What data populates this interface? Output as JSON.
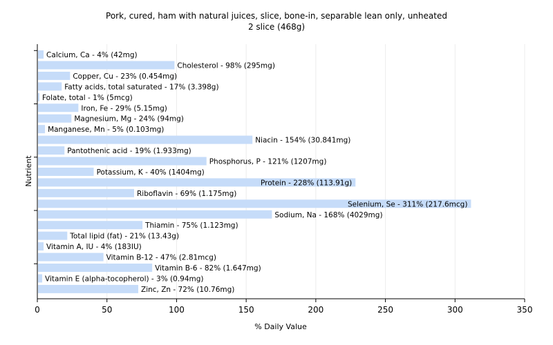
{
  "chart_data": {
    "type": "bar",
    "orientation": "horizontal",
    "title": "Pork, cured, ham with natural juices, slice, bone-in, separable lean only, unheated",
    "subtitle": "2 slice (468g)",
    "xlabel": "% Daily Value",
    "ylabel": "Nutrient",
    "xlim": [
      0,
      350
    ],
    "xticks": [
      0,
      50,
      100,
      150,
      200,
      250,
      300,
      350
    ],
    "grid": true,
    "bar_color": "#c6dcf9",
    "categories": [
      "Calcium, Ca",
      "Cholesterol",
      "Copper, Cu",
      "Fatty acids, total saturated",
      "Folate, total",
      "Iron, Fe",
      "Magnesium, Mg",
      "Manganese, Mn",
      "Niacin",
      "Pantothenic acid",
      "Phosphorus, P",
      "Potassium, K",
      "Protein",
      "Riboflavin",
      "Selenium, Se",
      "Sodium, Na",
      "Thiamin",
      "Total lipid (fat)",
      "Vitamin A, IU",
      "Vitamin B-12",
      "Vitamin B-6",
      "Vitamin E (alpha-tocopherol)",
      "Zinc, Zn"
    ],
    "values": [
      4,
      98,
      23,
      17,
      1,
      29,
      24,
      5,
      154,
      19,
      121,
      40,
      228,
      69,
      311,
      168,
      75,
      21,
      4,
      47,
      82,
      3,
      72
    ],
    "labels": [
      "Calcium, Ca - 4% (42mg)",
      "Cholesterol - 98% (295mg)",
      "Copper, Cu - 23% (0.454mg)",
      "Fatty acids, total saturated - 17% (3.398g)",
      "Folate, total - 1% (5mcg)",
      "Iron, Fe - 29% (5.15mg)",
      "Magnesium, Mg - 24% (94mg)",
      "Manganese, Mn - 5% (0.103mg)",
      "Niacin - 154% (30.841mg)",
      "Pantothenic acid - 19% (1.933mg)",
      "Phosphorus, P - 121% (1207mg)",
      "Potassium, K - 40% (1404mg)",
      "Protein - 228% (113.91g)",
      "Riboflavin - 69% (1.175mg)",
      "Selenium, Se - 311% (217.6mcg)",
      "Sodium, Na - 168% (4029mg)",
      "Thiamin - 75% (1.123mg)",
      "Total lipid (fat) - 21% (13.43g)",
      "Vitamin A, IU - 4% (183IU)",
      "Vitamin B-12 - 47% (2.81mcg)",
      "Vitamin B-6 - 82% (1.647mg)",
      "Vitamin E (alpha-tocopherol) - 3% (0.94mg)",
      "Zinc, Zn - 72% (10.76mg)"
    ]
  }
}
